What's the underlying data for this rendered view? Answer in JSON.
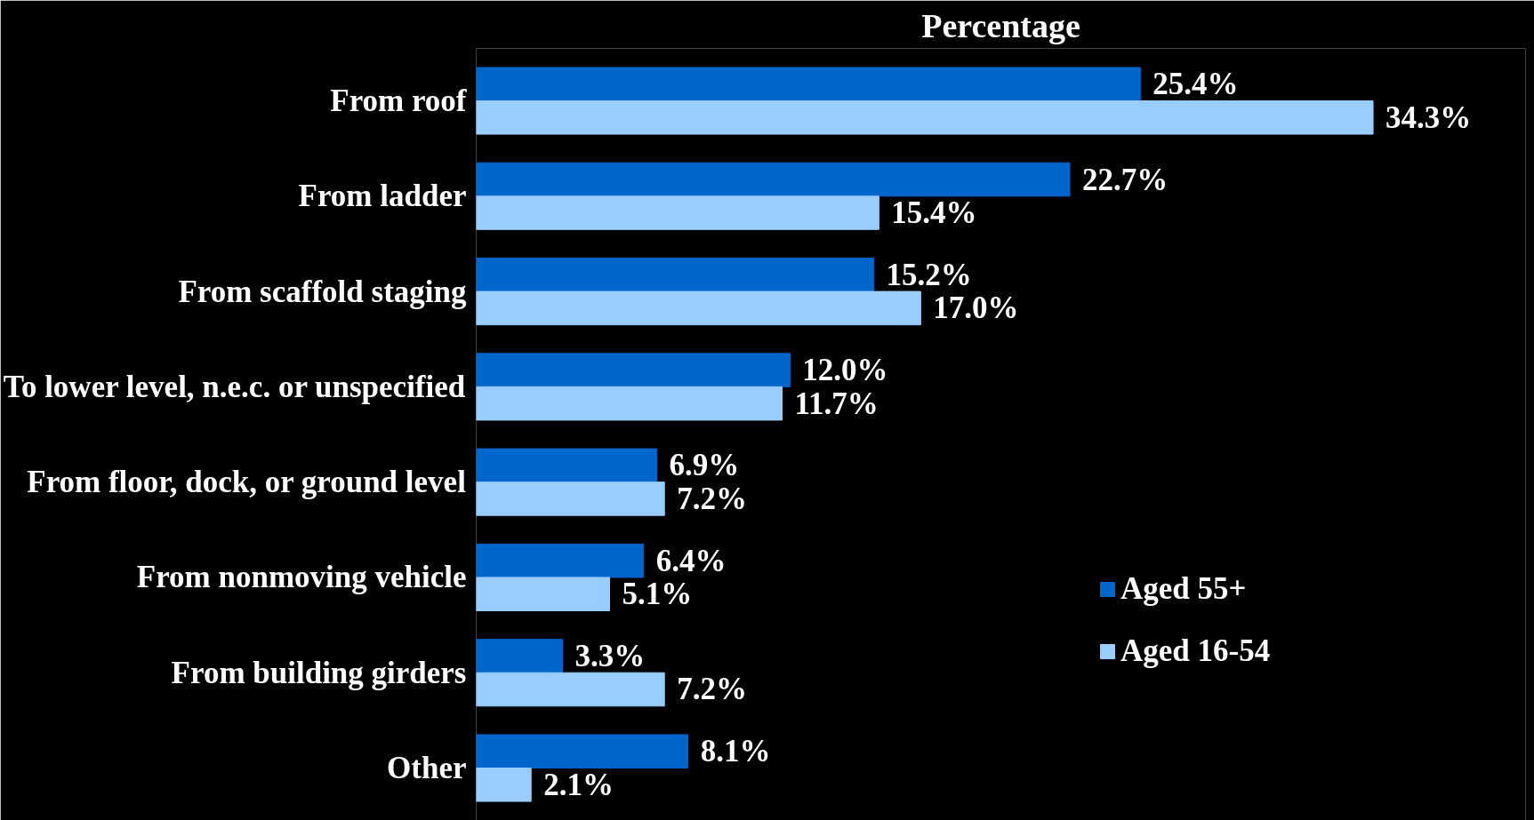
{
  "chart_data": {
    "type": "bar",
    "orientation": "horizontal",
    "title": "Percentage",
    "categories": [
      "From roof",
      "From ladder",
      "From scaffold staging",
      "To lower level, n.e.c. or unspecified",
      "From floor, dock, or ground level",
      "From nonmoving vehicle",
      "From building girders",
      "Other"
    ],
    "series": [
      {
        "name": "Aged 55+",
        "color": "#0066cc",
        "values": [
          25.4,
          22.7,
          15.2,
          12.0,
          6.9,
          6.4,
          3.3,
          8.1
        ],
        "value_labels": [
          "25.4%",
          "22.7%",
          "15.2%",
          "12.0%",
          "6.9%",
          "6.4%",
          "3.3%",
          "8.1%"
        ]
      },
      {
        "name": "Aged 16-54",
        "color": "#99ccff",
        "values": [
          34.3,
          15.4,
          17.0,
          11.7,
          7.2,
          5.1,
          7.2,
          2.1
        ],
        "value_labels": [
          "34.3%",
          "15.4%",
          "17.0%",
          "11.7%",
          "7.2%",
          "5.1%",
          "7.2%",
          "2.1%"
        ]
      }
    ],
    "legend": "right",
    "grid": false,
    "tick_labels": "y"
  }
}
